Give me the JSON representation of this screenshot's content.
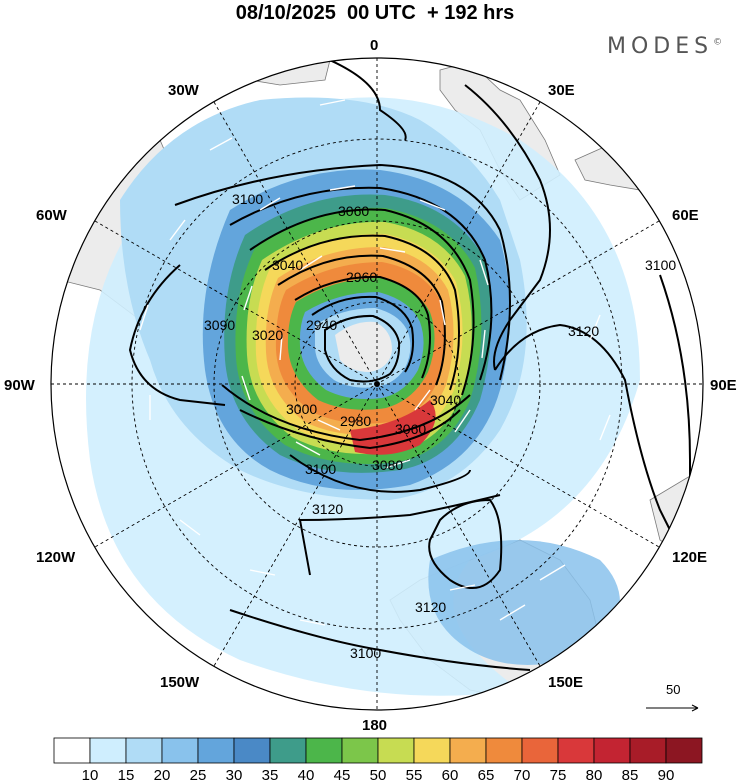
{
  "title": "08/10/2025  00 UTC  + 192 hrs",
  "brand": "MODES",
  "brand_mark": "©",
  "longitude_labels": {
    "n": "0",
    "ne": "30E",
    "e60": "60E",
    "e": "90E",
    "e120": "120E",
    "se": "150E",
    "s": "180",
    "sw": "150W",
    "w120": "120W",
    "w": "90W",
    "w60": "60W",
    "nw": "30W"
  },
  "contour_labels": [
    "3100",
    "3060",
    "3040",
    "2960",
    "2940",
    "3020",
    "3080",
    "3000",
    "3060",
    "2980",
    "3040",
    "3100",
    "3120",
    "3120",
    "3100",
    "3120",
    "3100",
    "3090"
  ],
  "colorbar": {
    "ticks": [
      "10",
      "15",
      "20",
      "25",
      "30",
      "35",
      "40",
      "45",
      "50",
      "55",
      "60",
      "65",
      "70",
      "75",
      "80",
      "85",
      "90"
    ],
    "colors": [
      "#ffffff",
      "#cfeefe",
      "#b0dcf6",
      "#89c2ec",
      "#63a5dc",
      "#4a89c6",
      "#3e9c8a",
      "#4cb64a",
      "#7cc64a",
      "#c7dc52",
      "#f5d85a",
      "#f4ad4e",
      "#ef8a3c",
      "#e9653a",
      "#d9383a",
      "#c32432",
      "#a81c28",
      "#8c1622"
    ]
  },
  "vector_reference": {
    "value": "50"
  },
  "colors": {
    "land": "#ececec",
    "coast": "#7a7a7a",
    "contour": "#000000",
    "grid": "#000000"
  }
}
